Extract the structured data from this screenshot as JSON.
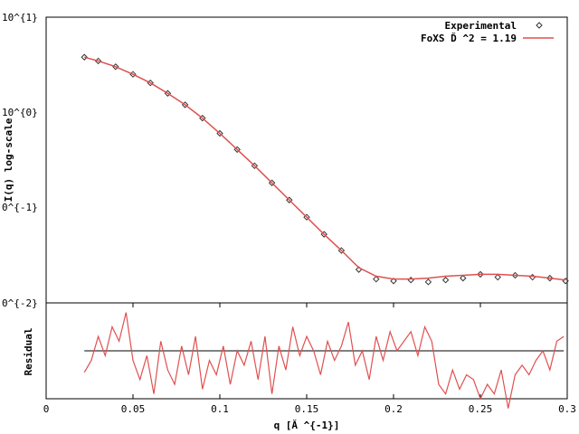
{
  "chart_data": [
    {
      "type": "scatter",
      "xlabel": "",
      "ylabel": "I(q) log-scale",
      "y_scale": "log",
      "xlim": [
        0,
        0.3
      ],
      "ylim_log10": [
        -2,
        1
      ],
      "y_tick_labels": [
        "10^{1}",
        "10^{0}",
        "0^{-1}",
        "0^{-2}"
      ],
      "legend": {
        "placement": "top-right",
        "entries": [
          {
            "label": "Experimental",
            "color": "#333333",
            "marker": "diamond"
          },
          {
            "label": "FoXS Ď ^2 = 1.19",
            "color": "#e05050",
            "marker": "line"
          }
        ]
      },
      "series": [
        {
          "name": "Experimental",
          "x": [
            0.022,
            0.03,
            0.04,
            0.05,
            0.06,
            0.07,
            0.08,
            0.09,
            0.1,
            0.11,
            0.12,
            0.13,
            0.14,
            0.15,
            0.16,
            0.17,
            0.18,
            0.19,
            0.2,
            0.21,
            0.22,
            0.23,
            0.24,
            0.25,
            0.26,
            0.27,
            0.28,
            0.29,
            0.299
          ],
          "log10_y": [
            0.58,
            0.54,
            0.48,
            0.4,
            0.31,
            0.2,
            0.08,
            -0.06,
            -0.22,
            -0.39,
            -0.56,
            -0.74,
            -0.92,
            -1.1,
            -1.28,
            -1.45,
            -1.65,
            -1.75,
            -1.77,
            -1.76,
            -1.78,
            -1.76,
            -1.74,
            -1.7,
            -1.73,
            -1.71,
            -1.73,
            -1.74,
            -1.77
          ]
        },
        {
          "name": "FoXS Ď ^2 = 1.19",
          "x": [
            0.022,
            0.03,
            0.04,
            0.05,
            0.06,
            0.07,
            0.08,
            0.09,
            0.1,
            0.11,
            0.12,
            0.13,
            0.14,
            0.15,
            0.16,
            0.17,
            0.18,
            0.19,
            0.2,
            0.21,
            0.22,
            0.23,
            0.24,
            0.25,
            0.26,
            0.27,
            0.28,
            0.29,
            0.299
          ],
          "log10_y": [
            0.58,
            0.54,
            0.48,
            0.4,
            0.31,
            0.2,
            0.08,
            -0.06,
            -0.22,
            -0.39,
            -0.56,
            -0.74,
            -0.92,
            -1.1,
            -1.28,
            -1.45,
            -1.63,
            -1.72,
            -1.75,
            -1.75,
            -1.74,
            -1.72,
            -1.71,
            -1.7,
            -1.7,
            -1.71,
            -1.72,
            -1.74,
            -1.76
          ]
        }
      ]
    },
    {
      "type": "line",
      "xlabel": "q [Ă ^{-1}]",
      "ylabel": "Residual",
      "xlim": [
        0,
        0.3
      ],
      "x_ticks": [
        0,
        0.05,
        0.1,
        0.15,
        0.2,
        0.25,
        0.3
      ],
      "x_tick_labels": [
        "0",
        "0.05",
        "0.1",
        "0.15",
        "0.2",
        "0.25",
        "0.3"
      ],
      "ylim": [
        -1,
        1
      ],
      "reference_line": 0,
      "series": [
        {
          "name": "",
          "color": "#e05050",
          "x": [
            0.022,
            0.026,
            0.03,
            0.034,
            0.038,
            0.042,
            0.046,
            0.05,
            0.054,
            0.058,
            0.062,
            0.066,
            0.07,
            0.074,
            0.078,
            0.082,
            0.086,
            0.09,
            0.094,
            0.098,
            0.102,
            0.106,
            0.11,
            0.114,
            0.118,
            0.122,
            0.126,
            0.13,
            0.134,
            0.138,
            0.142,
            0.146,
            0.15,
            0.154,
            0.158,
            0.162,
            0.166,
            0.17,
            0.174,
            0.178,
            0.182,
            0.186,
            0.19,
            0.194,
            0.198,
            0.202,
            0.206,
            0.21,
            0.214,
            0.218,
            0.222,
            0.226,
            0.23,
            0.234,
            0.238,
            0.242,
            0.246,
            0.25,
            0.254,
            0.258,
            0.262,
            0.266,
            0.27,
            0.274,
            0.278,
            0.282,
            0.286,
            0.29,
            0.294,
            0.298
          ],
          "values": [
            -0.45,
            -0.2,
            0.3,
            -0.1,
            0.5,
            0.2,
            0.8,
            -0.2,
            -0.6,
            -0.1,
            -0.9,
            0.2,
            -0.4,
            -0.7,
            0.1,
            -0.5,
            0.3,
            -0.8,
            -0.2,
            -0.5,
            0.1,
            -0.7,
            0.0,
            -0.3,
            0.2,
            -0.6,
            0.3,
            -0.9,
            0.1,
            -0.4,
            0.5,
            -0.1,
            0.3,
            0.0,
            -0.5,
            0.2,
            -0.2,
            0.1,
            0.6,
            -0.3,
            0.0,
            -0.6,
            0.3,
            -0.2,
            0.4,
            0.0,
            0.2,
            0.4,
            -0.1,
            0.5,
            0.2,
            -0.7,
            -0.9,
            -0.4,
            -0.8,
            -0.5,
            -0.6,
            -1.0,
            -0.7,
            -0.9,
            -0.4,
            -1.2,
            -0.5,
            -0.3,
            -0.5,
            -0.2,
            0.0,
            -0.4,
            0.2,
            0.3
          ]
        }
      ]
    }
  ]
}
